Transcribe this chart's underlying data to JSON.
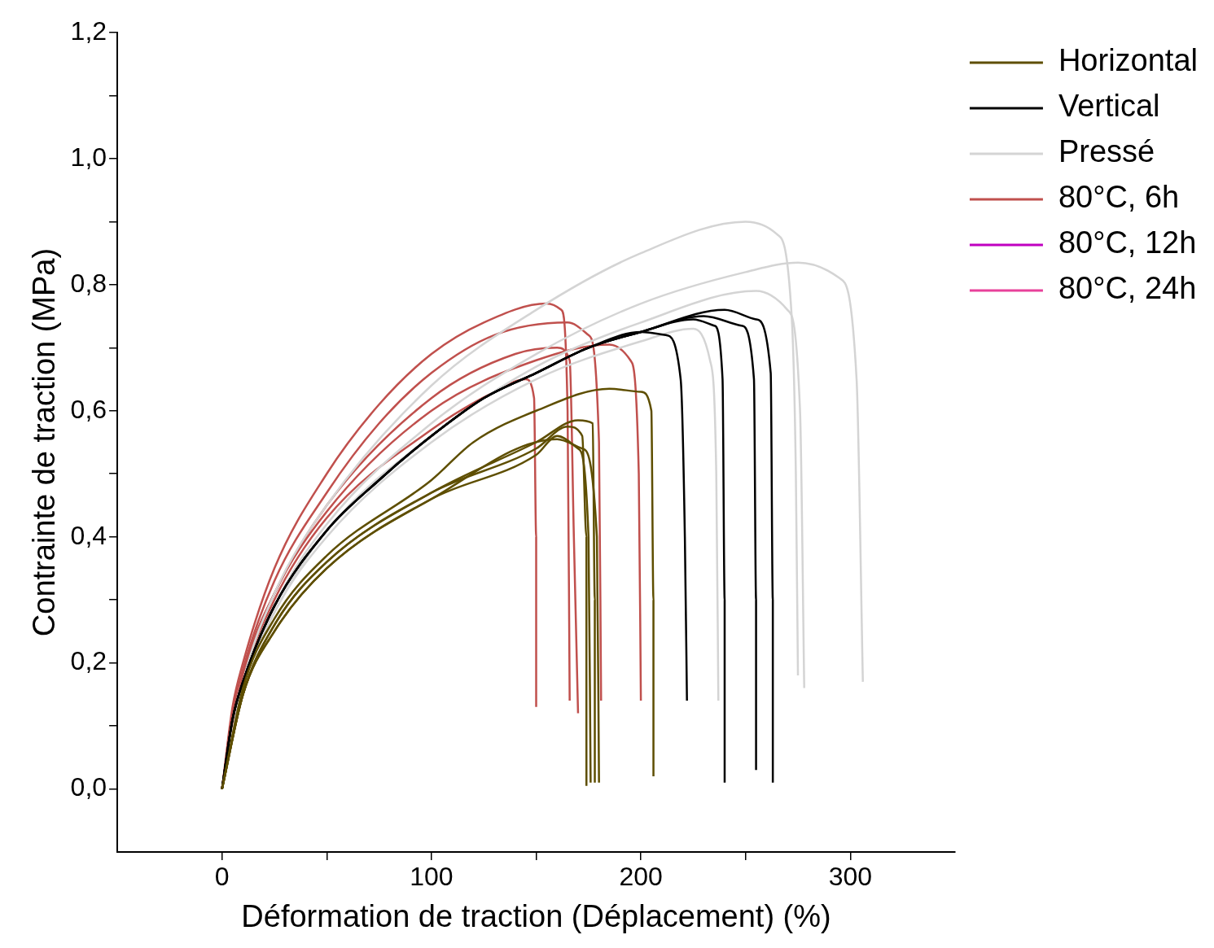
{
  "chart_data": {
    "type": "line",
    "xlabel": "Déformation de traction (Déplacement) (%)",
    "ylabel": "Contrainte de traction (MPa)",
    "xlim": [
      -50,
      350
    ],
    "xticks": [
      0,
      {
        "value": 50,
        "label": null
      },
      100,
      {
        "value": 150,
        "label": null
      },
      200,
      {
        "value": 250,
        "label": null
      },
      300
    ],
    "ylim": [
      -0.1,
      1.2
    ],
    "yticks": [
      {
        "value": 0,
        "label": "0,0"
      },
      {
        "value": 0.1,
        "label": null
      },
      {
        "value": 0.2,
        "label": "0,2"
      },
      {
        "value": 0.3,
        "label": null
      },
      {
        "value": 0.4,
        "label": "0,4"
      },
      {
        "value": 0.5,
        "label": null
      },
      {
        "value": 0.6,
        "label": "0,6"
      },
      {
        "value": 0.7,
        "label": null
      },
      {
        "value": 0.8,
        "label": "0,8"
      },
      {
        "value": 0.9,
        "label": null
      },
      {
        "value": 1.0,
        "label": "1,0"
      },
      {
        "value": 1.1,
        "label": null
      },
      {
        "value": 1.2,
        "label": "1,2"
      }
    ],
    "grid": false,
    "legend": "top right",
    "marker": "none",
    "line_style": "solid",
    "series": [
      {
        "name": "Horizontal",
        "color": "#5e4e00",
        "x": [
          0,
          10,
          25,
          50,
          100,
          120,
          150,
          185,
          200,
          205,
          206,
          206
        ],
        "values": [
          0,
          0.16,
          0.27,
          0.37,
          0.49,
          0.55,
          0.6,
          0.635,
          0.63,
          0.6,
          0.3,
          0.02
        ]
      },
      {
        "color": "#5e4e00",
        "x": [
          0,
          10,
          25,
          50,
          100,
          150,
          170,
          177,
          178,
          178
        ],
        "values": [
          0,
          0.15,
          0.26,
          0.36,
          0.47,
          0.55,
          0.585,
          0.58,
          0.3,
          0.01
        ]
      },
      {
        "color": "#5e4e00",
        "x": [
          0,
          10,
          25,
          50,
          100,
          150,
          165,
          172,
          174,
          174
        ],
        "values": [
          0,
          0.15,
          0.26,
          0.36,
          0.47,
          0.54,
          0.575,
          0.56,
          0.4,
          0.005
        ]
      },
      {
        "color": "#5e4e00",
        "x": [
          0,
          10,
          25,
          50,
          100,
          150,
          160,
          170,
          175,
          176
        ],
        "values": [
          0,
          0.15,
          0.25,
          0.35,
          0.46,
          0.53,
          0.56,
          0.54,
          0.4,
          0.01
        ]
      },
      {
        "color": "#5e4e00",
        "x": [
          0,
          10,
          25,
          50,
          100,
          160,
          172,
          179,
          180
        ],
        "values": [
          0,
          0.15,
          0.25,
          0.35,
          0.46,
          0.555,
          0.54,
          0.4,
          0.01
        ]
      },
      {
        "name": "Vertical",
        "color": "#000000",
        "x": [
          0,
          5,
          10,
          25,
          50,
          75,
          100,
          125,
          150,
          175,
          200,
          212,
          219,
          221,
          222
        ],
        "values": [
          0,
          0.11,
          0.17,
          0.29,
          0.41,
          0.49,
          0.56,
          0.62,
          0.66,
          0.7,
          0.725,
          0.72,
          0.65,
          0.4,
          0.14
        ]
      },
      {
        "color": "#000000",
        "x": [
          0,
          5,
          10,
          25,
          50,
          75,
          100,
          125,
          150,
          175,
          200,
          225,
          235,
          239,
          240,
          240
        ],
        "values": [
          0,
          0.11,
          0.17,
          0.29,
          0.41,
          0.49,
          0.56,
          0.62,
          0.66,
          0.7,
          0.725,
          0.745,
          0.735,
          0.65,
          0.3,
          0.01
        ]
      },
      {
        "color": "#000000",
        "x": [
          0,
          5,
          10,
          25,
          50,
          75,
          100,
          125,
          150,
          175,
          200,
          230,
          248,
          254,
          255,
          255
        ],
        "values": [
          0,
          0.11,
          0.17,
          0.29,
          0.41,
          0.49,
          0.56,
          0.62,
          0.66,
          0.7,
          0.725,
          0.75,
          0.735,
          0.65,
          0.3,
          0.03
        ]
      },
      {
        "color": "#000000",
        "x": [
          0,
          5,
          10,
          25,
          50,
          75,
          100,
          125,
          150,
          175,
          200,
          240,
          255,
          262,
          263,
          263
        ],
        "values": [
          0,
          0.11,
          0.17,
          0.29,
          0.41,
          0.49,
          0.56,
          0.62,
          0.66,
          0.7,
          0.725,
          0.76,
          0.745,
          0.66,
          0.3,
          0.01
        ]
      },
      {
        "name": "Pressé",
        "color": "#d4d4d4",
        "x": [
          0,
          10,
          25,
          50,
          100,
          150,
          200,
          250,
          265,
          272,
          274,
          275
        ],
        "values": [
          0,
          0.17,
          0.31,
          0.45,
          0.64,
          0.76,
          0.85,
          0.9,
          0.88,
          0.75,
          0.5,
          0.18
        ]
      },
      {
        "color": "#d4d4d4",
        "x": [
          0,
          10,
          25,
          50,
          100,
          150,
          200,
          250,
          275,
          295,
          303,
          306
        ],
        "values": [
          0,
          0.16,
          0.29,
          0.42,
          0.58,
          0.69,
          0.77,
          0.82,
          0.835,
          0.81,
          0.65,
          0.17
        ]
      },
      {
        "color": "#d4d4d4",
        "x": [
          0,
          10,
          25,
          50,
          100,
          150,
          200,
          255,
          270,
          276,
          278
        ],
        "values": [
          0,
          0.16,
          0.28,
          0.41,
          0.56,
          0.67,
          0.74,
          0.79,
          0.76,
          0.6,
          0.16
        ]
      },
      {
        "color": "#d4d4d4",
        "x": [
          0,
          10,
          25,
          50,
          100,
          150,
          200,
          225,
          233,
          236,
          237
        ],
        "values": [
          0,
          0.16,
          0.28,
          0.4,
          0.55,
          0.65,
          0.71,
          0.73,
          0.68,
          0.5,
          0.14
        ]
      },
      {
        "name": "80°C, 6h",
        "color": "#c0504d",
        "x": [
          0,
          5,
          10,
          25,
          50,
          75,
          100,
          125,
          155,
          162,
          165,
          166
        ],
        "values": [
          0,
          0.13,
          0.2,
          0.35,
          0.5,
          0.61,
          0.69,
          0.74,
          0.77,
          0.76,
          0.6,
          0.14
        ]
      },
      {
        "color": "#c0504d",
        "x": [
          0,
          5,
          10,
          25,
          50,
          75,
          100,
          130,
          165,
          175,
          180,
          181
        ],
        "values": [
          0,
          0.12,
          0.19,
          0.33,
          0.47,
          0.58,
          0.66,
          0.72,
          0.74,
          0.72,
          0.55,
          0.14
        ]
      },
      {
        "color": "#c0504d",
        "x": [
          0,
          10,
          25,
          50,
          100,
          140,
          160,
          166,
          168,
          170
        ],
        "values": [
          0,
          0.18,
          0.31,
          0.45,
          0.62,
          0.69,
          0.7,
          0.68,
          0.4,
          0.12
        ]
      },
      {
        "color": "#c0504d",
        "x": [
          0,
          10,
          25,
          50,
          100,
          150,
          185,
          195,
          199,
          200
        ],
        "values": [
          0,
          0.18,
          0.31,
          0.44,
          0.6,
          0.68,
          0.705,
          0.68,
          0.5,
          0.14
        ]
      },
      {
        "color": "#c0504d",
        "x": [
          0,
          10,
          25,
          50,
          100,
          130,
          145,
          149,
          150,
          150
        ],
        "values": [
          0,
          0.17,
          0.3,
          0.43,
          0.57,
          0.63,
          0.65,
          0.62,
          0.4,
          0.13
        ]
      },
      {
        "name": "80°C, 12h",
        "color": "#c000c0"
      },
      {
        "name": "80°C, 24h",
        "color": "#e8409a"
      }
    ]
  }
}
